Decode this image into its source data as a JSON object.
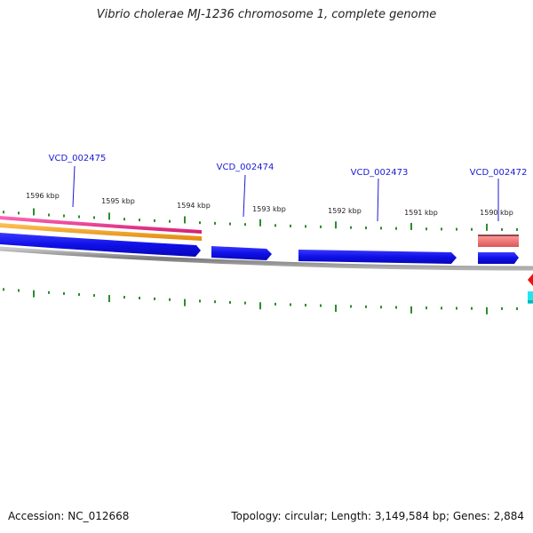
{
  "title": "Vibrio cholerae MJ-1236 chromosome 1, complete genome",
  "footer": {
    "accession": "Accession: NC_012668",
    "summary": "Topology: circular; Length: 3,149,584 bp; Genes: 2,884"
  },
  "colors": {
    "gene": "#1414ee",
    "gene_label": "#1a1ad6",
    "tick": "#2e8b2e",
    "backbone": "#8c8c8c",
    "magenta_track": "#e8298a",
    "orange_track": "#f5a11f",
    "pink_feature": "#ee7b7b",
    "red_feature": "#ee1111",
    "cyan_feature": "#22e6ee"
  },
  "gene_labels": [
    "VCD_002475",
    "VCD_002474",
    "VCD_002473",
    "VCD_002472"
  ],
  "kbp_labels": [
    "1596 kbp",
    "1595 kbp",
    "1594 kbp",
    "1593 kbp",
    "1592 kbp",
    "1591 kbp",
    "1590 kbp"
  ]
}
